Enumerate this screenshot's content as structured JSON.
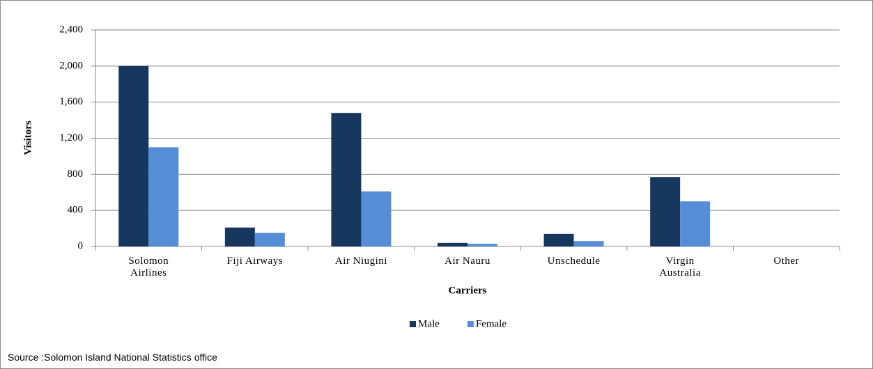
{
  "chart_data": {
    "type": "bar",
    "categories": [
      "Solomon Airlines",
      "Fiji Airways",
      "Air Niugini",
      "Air Nauru",
      "Unschedule",
      "Virgin Australia",
      "Other"
    ],
    "series": [
      {
        "name": "Male",
        "color": "#17375e",
        "values": [
          2000,
          210,
          1480,
          40,
          140,
          770,
          0
        ]
      },
      {
        "name": "Female",
        "color": "#558ed5",
        "values": [
          1100,
          150,
          610,
          30,
          60,
          500,
          0
        ]
      }
    ],
    "ylim": [
      0,
      2400
    ],
    "yticks": [
      0,
      400,
      800,
      {
        "value": 1200,
        "label": "1,200"
      },
      {
        "value": 1600,
        "label": "1,600"
      },
      {
        "value": 2000,
        "label": "2,000"
      },
      {
        "value": 2400,
        "label": "2,400"
      }
    ],
    "grid": true,
    "x_label": "Carriers",
    "y_label": "Visitors",
    "legend": "bottom",
    "source": "Source :Solomon Island National Statistics office"
  }
}
